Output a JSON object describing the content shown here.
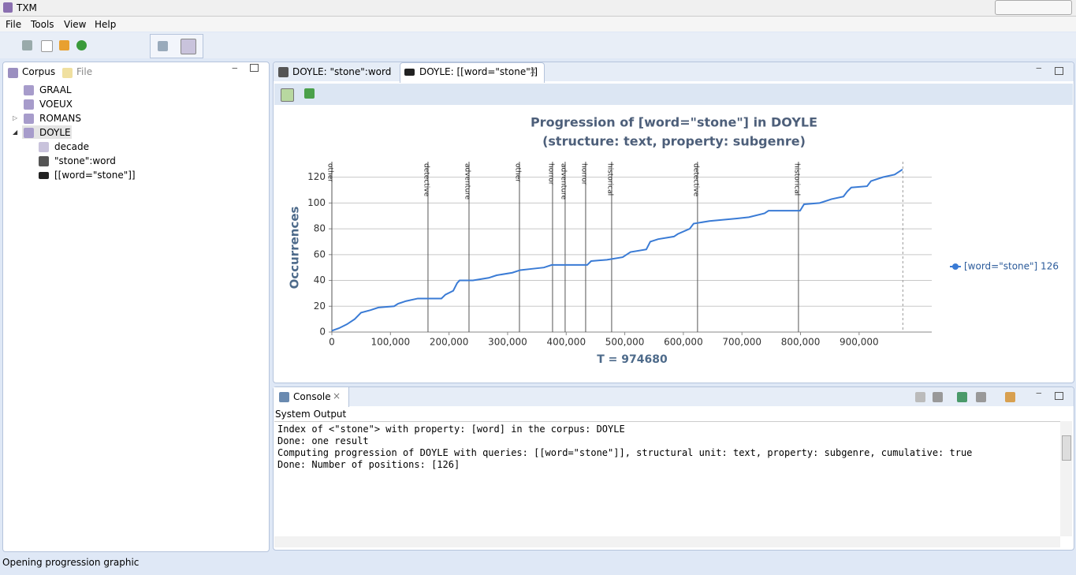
{
  "window": {
    "title": "TXM"
  },
  "menu": [
    "File",
    "Tools",
    "View",
    "Help"
  ],
  "left_panel": {
    "tabs": [
      "Corpus",
      "File"
    ],
    "tree": [
      "GRAAL",
      "VOEUX",
      "ROMANS",
      "DOYLE",
      "decade",
      "\"stone\":word",
      "[[word=\"stone\"]]"
    ]
  },
  "editor_tabs": [
    "DOYLE: \"stone\":word",
    "DOYLE: [[word=\"stone\"]]"
  ],
  "chart_data": {
    "type": "line",
    "title": "Progression of [word=\"stone\"] in DOYLE",
    "subtitle": "(structure: text, property: subgenre)",
    "y_label": "Occurrences",
    "x_label": "T = 974680",
    "x": [
      0,
      12100,
      25600,
      39000,
      49800,
      65900,
      79400,
      106300,
      113000,
      126500,
      146700,
      187000,
      193800,
      207200,
      213900,
      218000,
      240800,
      267700,
      281200,
      308100,
      321500,
      341700,
      361900,
      375300,
      435900,
      442600,
      469500,
      496400,
      509800,
      536700,
      543500,
      557000,
      583900,
      590600,
      610800,
      617500,
      644500,
      691500,
      711700,
      738600,
      745400,
      799200,
      806000,
      832800,
      853000,
      873200,
      879900,
      886600,
      913600,
      920300,
      940500,
      960700,
      967400,
      974100
    ],
    "series": [
      {
        "name": "[word=\"stone\"] 126",
        "color": "#3a7bd5",
        "values": [
          1,
          3,
          6,
          10,
          15,
          17,
          19,
          20,
          22,
          24,
          26,
          26,
          29,
          32,
          38,
          40,
          40,
          42,
          44,
          46,
          48,
          49,
          50,
          52,
          52,
          55,
          56,
          58,
          62,
          64,
          70,
          72,
          74,
          76,
          80,
          84,
          86,
          88,
          89,
          92,
          94,
          94,
          99,
          100,
          103,
          105,
          109,
          112,
          113,
          117,
          120,
          122,
          124,
          126
        ]
      }
    ],
    "xlim": [
      0,
      1024000
    ],
    "ylim": [
      0,
      132
    ],
    "xticks": [
      0,
      {
        "value": 100000,
        "label": "100,000"
      },
      {
        "value": 200000,
        "label": "200,000"
      },
      {
        "value": 300000,
        "label": "300,000"
      },
      {
        "value": 400000,
        "label": "400,000"
      },
      {
        "value": 500000,
        "label": "500,000"
      },
      {
        "value": 600000,
        "label": "600,000"
      },
      {
        "value": 700000,
        "label": "700,000"
      },
      {
        "value": 800000,
        "label": "800,000"
      },
      {
        "value": 900000,
        "label": "900,000"
      }
    ],
    "yticks": [
      0,
      20,
      40,
      60,
      80,
      100,
      120
    ],
    "grid": true,
    "legend": "right",
    "structure_markers": {
      "x": [
        0,
        164100,
        234100,
        320200,
        376700,
        398200,
        433200,
        477600,
        624200,
        796500
      ],
      "labels": [
        "other",
        "detective",
        "adventure",
        "other",
        "horror",
        "adventure",
        "horror",
        "historical",
        "detective",
        "historical"
      ]
    },
    "x_end": 974680
  },
  "console": {
    "tab": "Console",
    "header": "System Output",
    "lines": [
      "Index of <\"stone\"> with property: [word] in the corpus: DOYLE",
      "Done: one result",
      "Computing progression of DOYLE with queries: [[word=\"stone\"]], structural unit: text, property: subgenre, cumulative: true",
      "Done: Number of positions: [126]"
    ]
  },
  "status_bar": "Opening progression graphic"
}
